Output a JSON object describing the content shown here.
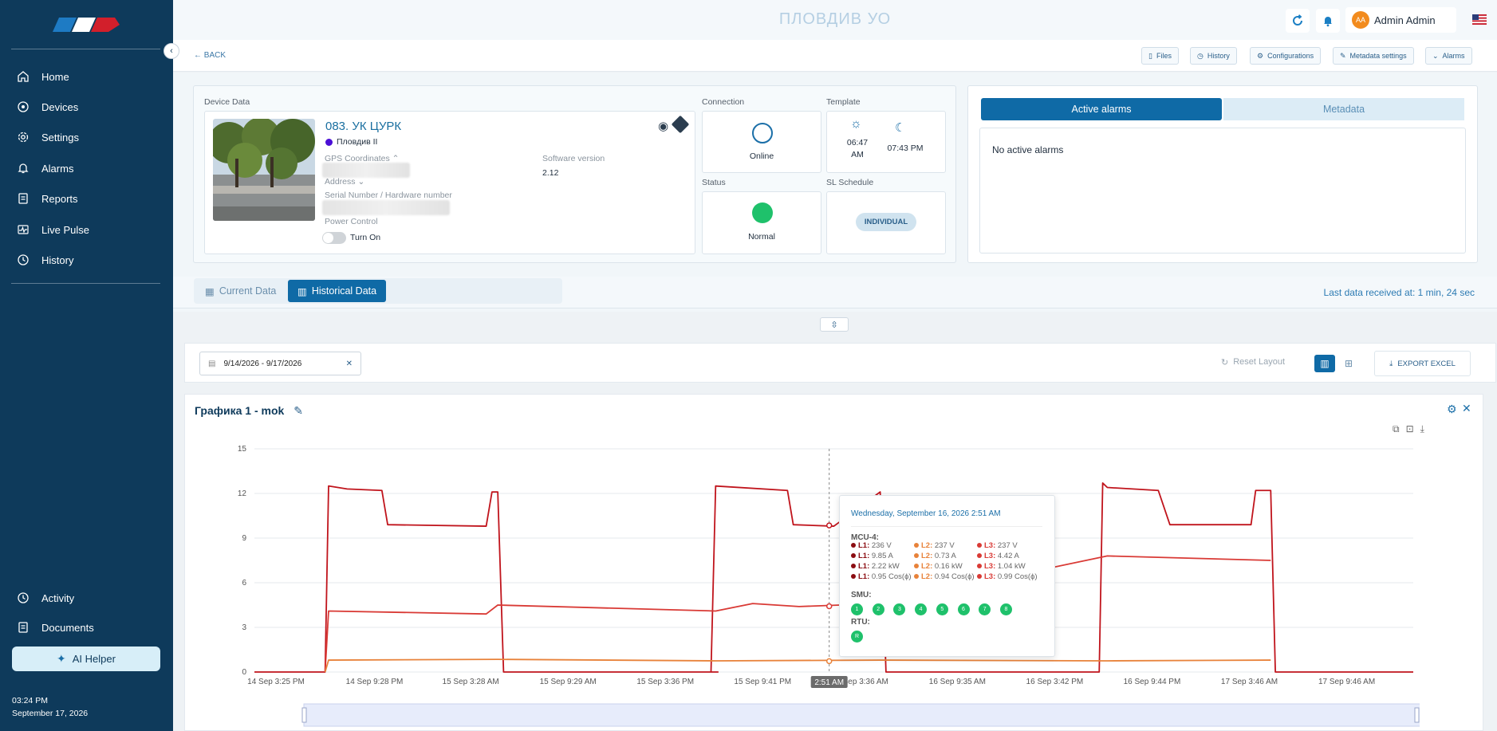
{
  "app": {
    "page_title": "ПЛОВДИВ УО",
    "user_initials": "AA",
    "user_name": "Admin Admin"
  },
  "sidebar": {
    "items": [
      {
        "label": "Home",
        "icon": "home-icon"
      },
      {
        "label": "Devices",
        "icon": "devices-icon"
      },
      {
        "label": "Settings",
        "icon": "gear-icon"
      },
      {
        "label": "Alarms",
        "icon": "bell-icon"
      },
      {
        "label": "Reports",
        "icon": "report-icon"
      },
      {
        "label": "Live Pulse",
        "icon": "pulse-icon"
      },
      {
        "label": "History",
        "icon": "history-icon"
      }
    ],
    "bottom_items": [
      {
        "label": "Activity",
        "icon": "activity-icon"
      },
      {
        "label": "Documents",
        "icon": "document-icon"
      }
    ],
    "ai_helper": "AI Helper",
    "time": "03:24 PM",
    "date": "September 17, 2026"
  },
  "subbar": {
    "back": "BACK",
    "buttons": [
      "Files",
      "History",
      "Configurations",
      "Metadata settings",
      "Alarms"
    ]
  },
  "device": {
    "section_label": "Device Data",
    "name": "083. УК ЦУРК",
    "group": "Пловдив II",
    "gps_label": "GPS Coordinates",
    "address_label": "Address",
    "serial_label": "Serial Number / Hardware number",
    "power_label": "Power Control",
    "power_value": "Turn On",
    "software_label": "Software version",
    "software_value": "2.12"
  },
  "connection": {
    "label": "Connection",
    "value": "Online"
  },
  "status": {
    "label": "Status",
    "value": "Normal"
  },
  "template": {
    "label": "Template",
    "sunrise": "06:47 AM",
    "sunset": "07:43 PM"
  },
  "schedule": {
    "label": "SL Schedule",
    "value": "INDIVIDUAL"
  },
  "alarms_panel": {
    "tab_active": "Active alarms",
    "tab_metadata": "Metadata",
    "message": "No active alarms"
  },
  "data_tabs": {
    "current": "Current Data",
    "historical": "Historical Data",
    "last_received": "Last data received at: 1 min, 24 sec"
  },
  "filter": {
    "date_range": "9/14/2026 - 9/17/2026",
    "reset_layout": "Reset Layout",
    "export": "EXPORT EXCEL"
  },
  "chart_data": {
    "type": "line",
    "title": "Графика 1 - mok",
    "ylim": [
      0,
      15
    ],
    "y_ticks": [
      0,
      3,
      6,
      9,
      12,
      15
    ],
    "x_ticks": [
      "14 Sep 3:25 PM",
      "14 Sep 9:28 PM",
      "15 Sep 3:28 AM",
      "15 Sep 9:29 AM",
      "15 Sep 3:36 PM",
      "15 Sep 9:41 PM",
      "16 Sep 3:36 AM",
      "16 Sep 9:35 AM",
      "16 Sep 3:42 PM",
      "16 Sep 9:44 PM",
      "17 Sep 3:46 AM",
      "17 Sep 9:46 AM"
    ],
    "cursor_label": "2:51 AM",
    "grid": true,
    "series": [
      {
        "color": "#c0141c",
        "x": [
          0,
          0.061,
          0.064,
          0.08,
          0.11,
          0.115,
          0.2,
          0.205,
          0.21,
          0.215,
          0.4,
          0.394,
          0.398,
          0.46,
          0.465,
          0.5,
          0.54,
          0.545,
          0.548,
          0.729,
          0.732,
          0.736,
          0.78,
          0.79,
          0.86,
          0.864,
          0.877,
          0.881,
          1.0
        ],
        "values": [
          0,
          0,
          12.5,
          12.3,
          12.2,
          9.9,
          9.8,
          12.1,
          12.1,
          0,
          0,
          0,
          12.5,
          12.2,
          9.9,
          9.8,
          12.1,
          0,
          0,
          0,
          12.7,
          12.4,
          12.2,
          9.9,
          9.9,
          12.2,
          12.2,
          0,
          0
        ]
      },
      {
        "color": "#d93a35",
        "x": [
          0.061,
          0.064,
          0.2,
          0.21,
          0.398,
          0.43,
          0.47,
          0.54,
          0.736,
          0.877
        ],
        "values": [
          0,
          4.1,
          3.9,
          4.5,
          4.1,
          4.6,
          4.4,
          4.6,
          7.8,
          7.5
        ]
      },
      {
        "color": "#e8823a",
        "x": [
          0.061,
          0.064,
          0.21,
          0.398,
          0.54,
          0.736,
          0.877
        ],
        "values": [
          0,
          0.8,
          0.85,
          0.75,
          0.8,
          0.75,
          0.8
        ]
      }
    ]
  },
  "tooltip": {
    "date": "Wednesday, September 16, 2026 2:51 AM",
    "group": "MCU-4:",
    "rows": [
      [
        {
          "k": "L1:",
          "v": " 236 V",
          "c": "#8b0d12"
        },
        {
          "k": "L2:",
          "v": " 237 V",
          "c": "#e8823a"
        },
        {
          "k": "L3:",
          "v": " 237 V",
          "c": "#d93a35"
        }
      ],
      [
        {
          "k": "L1:",
          "v": " 9.85 A",
          "c": "#8b0d12"
        },
        {
          "k": "L2:",
          "v": " 0.73 A",
          "c": "#e8823a"
        },
        {
          "k": "L3:",
          "v": " 4.42 A",
          "c": "#d93a35"
        }
      ],
      [
        {
          "k": "L1:",
          "v": " 2.22 kW",
          "c": "#8b0d12"
        },
        {
          "k": "L2:",
          "v": " 0.16 kW",
          "c": "#e8823a"
        },
        {
          "k": "L3:",
          "v": " 1.04 kW",
          "c": "#d93a35"
        }
      ],
      [
        {
          "k": "L1:",
          "v": " 0.95 Cos(ϕ)",
          "c": "#8b0d12"
        },
        {
          "k": "L2:",
          "v": " 0.94 Cos(ϕ)",
          "c": "#e8823a"
        },
        {
          "k": "L3:",
          "v": " 0.99 Cos(ϕ)",
          "c": "#d93a35"
        }
      ]
    ],
    "smu_label": "SMU:",
    "smu": [
      "1",
      "2",
      "3",
      "4",
      "5",
      "6",
      "7",
      "8"
    ],
    "rtu_label": "RTU:",
    "rtu": [
      "R"
    ]
  }
}
